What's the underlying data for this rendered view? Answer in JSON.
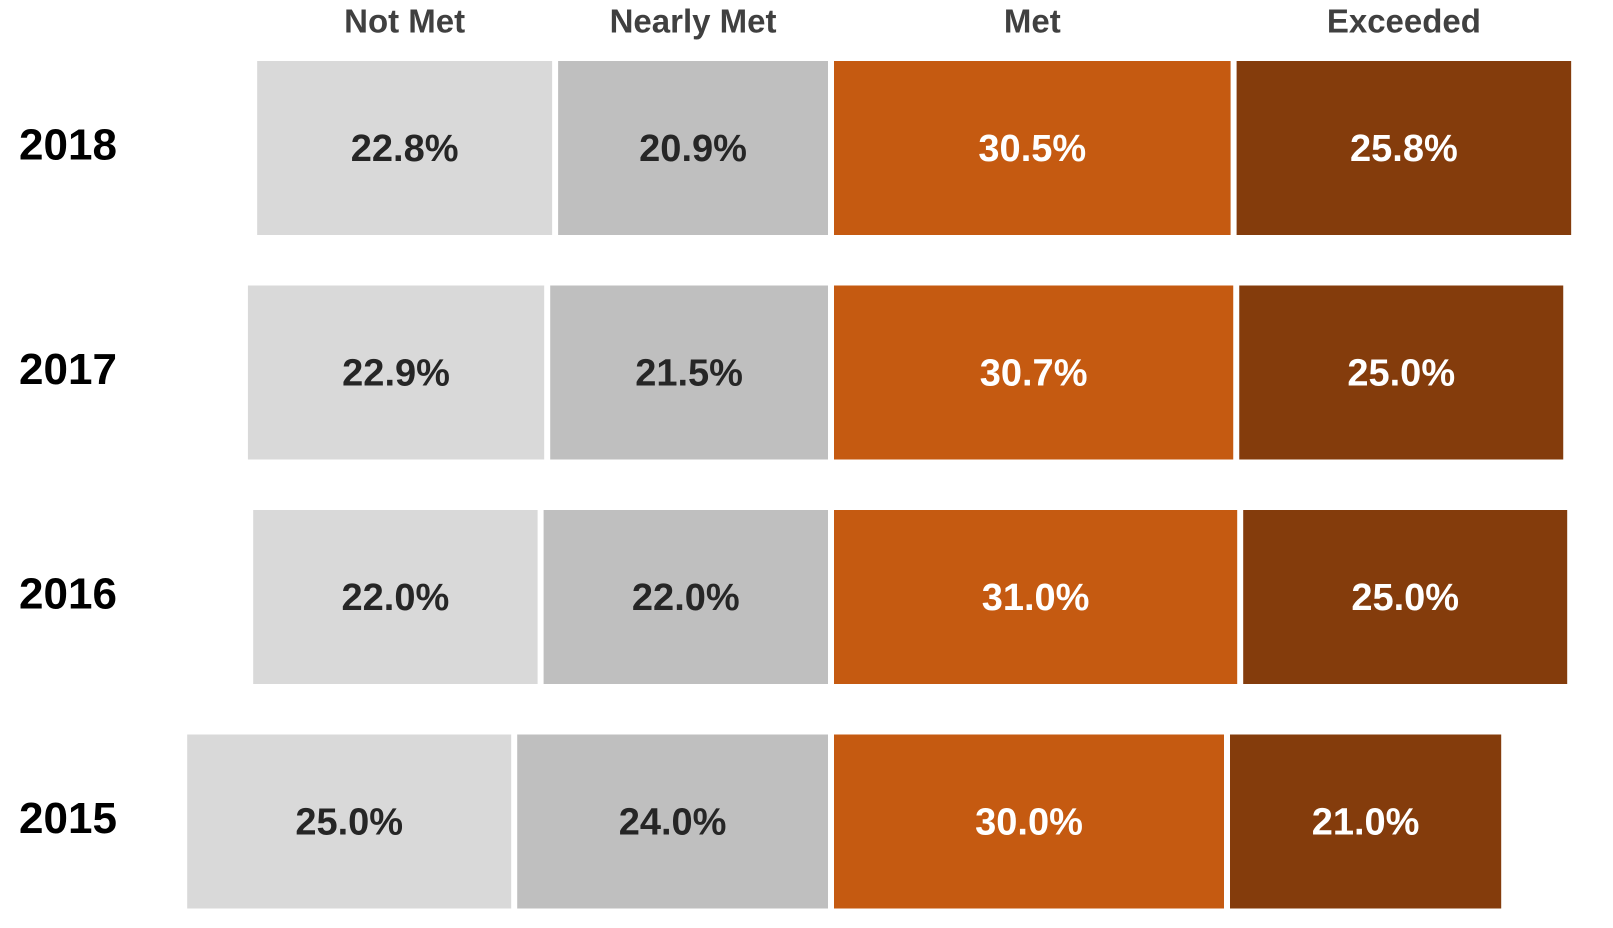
{
  "chart_data": {
    "type": "diverging_bar",
    "categories": [
      "2018",
      "2017",
      "2016",
      "2015"
    ],
    "series": [
      {
        "name": "Not Met",
        "color": "#d9d9d9",
        "label_color": "#262626",
        "values": [
          22.8,
          22.9,
          22.0,
          25.0
        ],
        "value_labels": [
          "22.8%",
          "22.9%",
          "22.0%",
          "25.0%"
        ]
      },
      {
        "name": "Nearly Met",
        "color": "#bfbfbf",
        "label_color": "#262626",
        "values": [
          20.9,
          21.5,
          22.0,
          24.0
        ],
        "value_labels": [
          "20.9%",
          "21.5%",
          "22.0%",
          "24.0%"
        ]
      },
      {
        "name": "Met",
        "color": "#c55a11",
        "label_color": "#ffffff",
        "values": [
          30.5,
          30.7,
          31.0,
          30.0
        ],
        "value_labels": [
          "30.5%",
          "30.7%",
          "31.0%",
          "30.0%"
        ]
      },
      {
        "name": "Exceeded",
        "color": "#843c0c",
        "label_color": "#ffffff",
        "values": [
          25.8,
          25.0,
          25.0,
          21.0
        ],
        "value_labels": [
          "25.8%",
          "25.0%",
          "25.0%",
          "21.0%"
        ]
      }
    ]
  }
}
